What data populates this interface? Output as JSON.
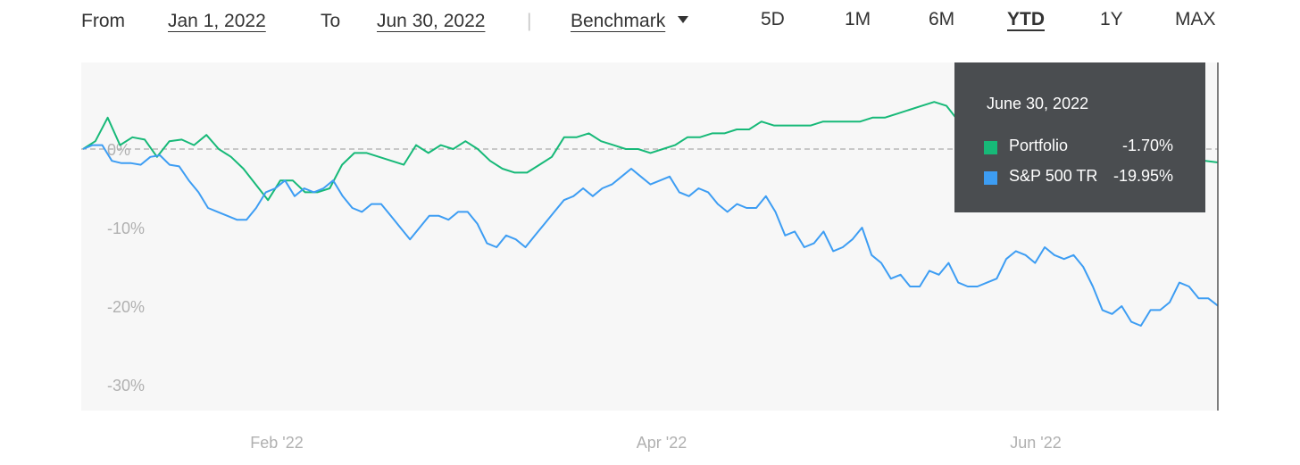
{
  "toolbar": {
    "from_label": "From",
    "from_date": "Jan 1, 2022",
    "to_label": "To",
    "to_date": "Jun 30, 2022",
    "separator": "|",
    "benchmark_label": "Benchmark",
    "ranges": [
      "5D",
      "1M",
      "6M",
      "YTD",
      "1Y",
      "MAX"
    ],
    "active_range": "YTD"
  },
  "tooltip": {
    "date": "June 30, 2022",
    "rows": [
      {
        "name": "Portfolio",
        "value": "-1.70%",
        "color": "#17b978"
      },
      {
        "name": "S&P 500 TR",
        "value": "-19.95%",
        "color": "#3d9df3"
      }
    ]
  },
  "chart_data": {
    "type": "line",
    "x_ticks": [
      "Feb '22",
      "Apr '22",
      "Jun '22"
    ],
    "y_ticks": [
      "0%",
      "-10%",
      "-20%",
      "-30%"
    ],
    "ylim": [
      -30,
      10
    ],
    "zero_line": "dashed",
    "background": "#f7f7f7",
    "series": [
      {
        "name": "Portfolio",
        "color": "#17b978",
        "values": [
          0.0,
          1.0,
          4.0,
          0.5,
          1.5,
          1.2,
          -1.0,
          1.0,
          1.2,
          0.5,
          1.8,
          0.0,
          -1.0,
          -2.5,
          -4.5,
          -6.5,
          -4.0,
          -4.0,
          -5.5,
          -5.5,
          -5.0,
          -2.0,
          -0.5,
          -0.5,
          -1.0,
          -1.5,
          -2.0,
          0.5,
          -0.5,
          0.5,
          0.0,
          1.0,
          0.0,
          -1.5,
          -2.5,
          -3.0,
          -3.0,
          -2.0,
          -1.0,
          1.5,
          1.5,
          2.0,
          1.0,
          0.5,
          0.0,
          0.0,
          -0.5,
          0.0,
          0.5,
          1.5,
          1.5,
          2.0,
          2.0,
          2.5,
          2.5,
          3.5,
          3.0,
          3.0,
          3.0,
          3.0,
          3.5,
          3.5,
          3.5,
          3.5,
          4.0,
          4.0,
          4.5,
          5.0,
          5.5,
          6.0,
          5.5,
          3.5,
          3.0,
          2.0,
          3.0,
          4.0,
          3.5,
          4.0,
          5.5,
          4.0,
          4.0,
          3.0,
          2.0,
          2.0,
          2.0,
          3.0,
          3.0,
          4.0,
          2.0,
          -0.5,
          -1.0,
          -1.5,
          -1.7
        ]
      },
      {
        "name": "S&P 500 TR",
        "color": "#3d9df3",
        "values": [
          0.0,
          0.5,
          0.5,
          -1.5,
          -1.8,
          -1.8,
          -2.0,
          -1.0,
          -0.8,
          -2.0,
          -2.2,
          -4.0,
          -5.5,
          -7.5,
          -8.0,
          -8.5,
          -9.0,
          -9.0,
          -7.5,
          -5.5,
          -5.0,
          -4.0,
          -6.0,
          -5.0,
          -5.5,
          -5.0,
          -4.0,
          -6.0,
          -7.5,
          -8.0,
          -7.0,
          -7.0,
          -8.5,
          -10.0,
          -11.5,
          -10.0,
          -8.5,
          -8.5,
          -9.0,
          -8.0,
          -8.0,
          -9.5,
          -12.0,
          -12.5,
          -11.0,
          -11.5,
          -12.5,
          -11.0,
          -9.5,
          -8.0,
          -6.5,
          -6.0,
          -5.0,
          -6.0,
          -5.0,
          -4.5,
          -3.5,
          -2.5,
          -3.5,
          -4.5,
          -4.0,
          -3.5,
          -5.5,
          -6.0,
          -5.0,
          -5.5,
          -7.0,
          -8.0,
          -7.0,
          -7.5,
          -7.5,
          -6.0,
          -8.0,
          -11.0,
          -10.5,
          -12.5,
          -12.0,
          -10.5,
          -13.0,
          -12.5,
          -11.5,
          -10.0,
          -13.5,
          -14.5,
          -16.5,
          -16.0,
          -17.5,
          -17.5,
          -15.5,
          -16.0,
          -14.5,
          -17.0,
          -17.5,
          -17.5,
          -17.0,
          -16.5,
          -14.0,
          -13.0,
          -13.5,
          -14.5,
          -12.5,
          -13.5,
          -14.0,
          -13.5,
          -15.0,
          -17.5,
          -20.5,
          -21.0,
          -20.0,
          -22.0,
          -22.5,
          -20.5,
          -20.5,
          -19.5,
          -17.0,
          -17.5,
          -19.0,
          -19.0,
          -19.95
        ]
      }
    ]
  }
}
